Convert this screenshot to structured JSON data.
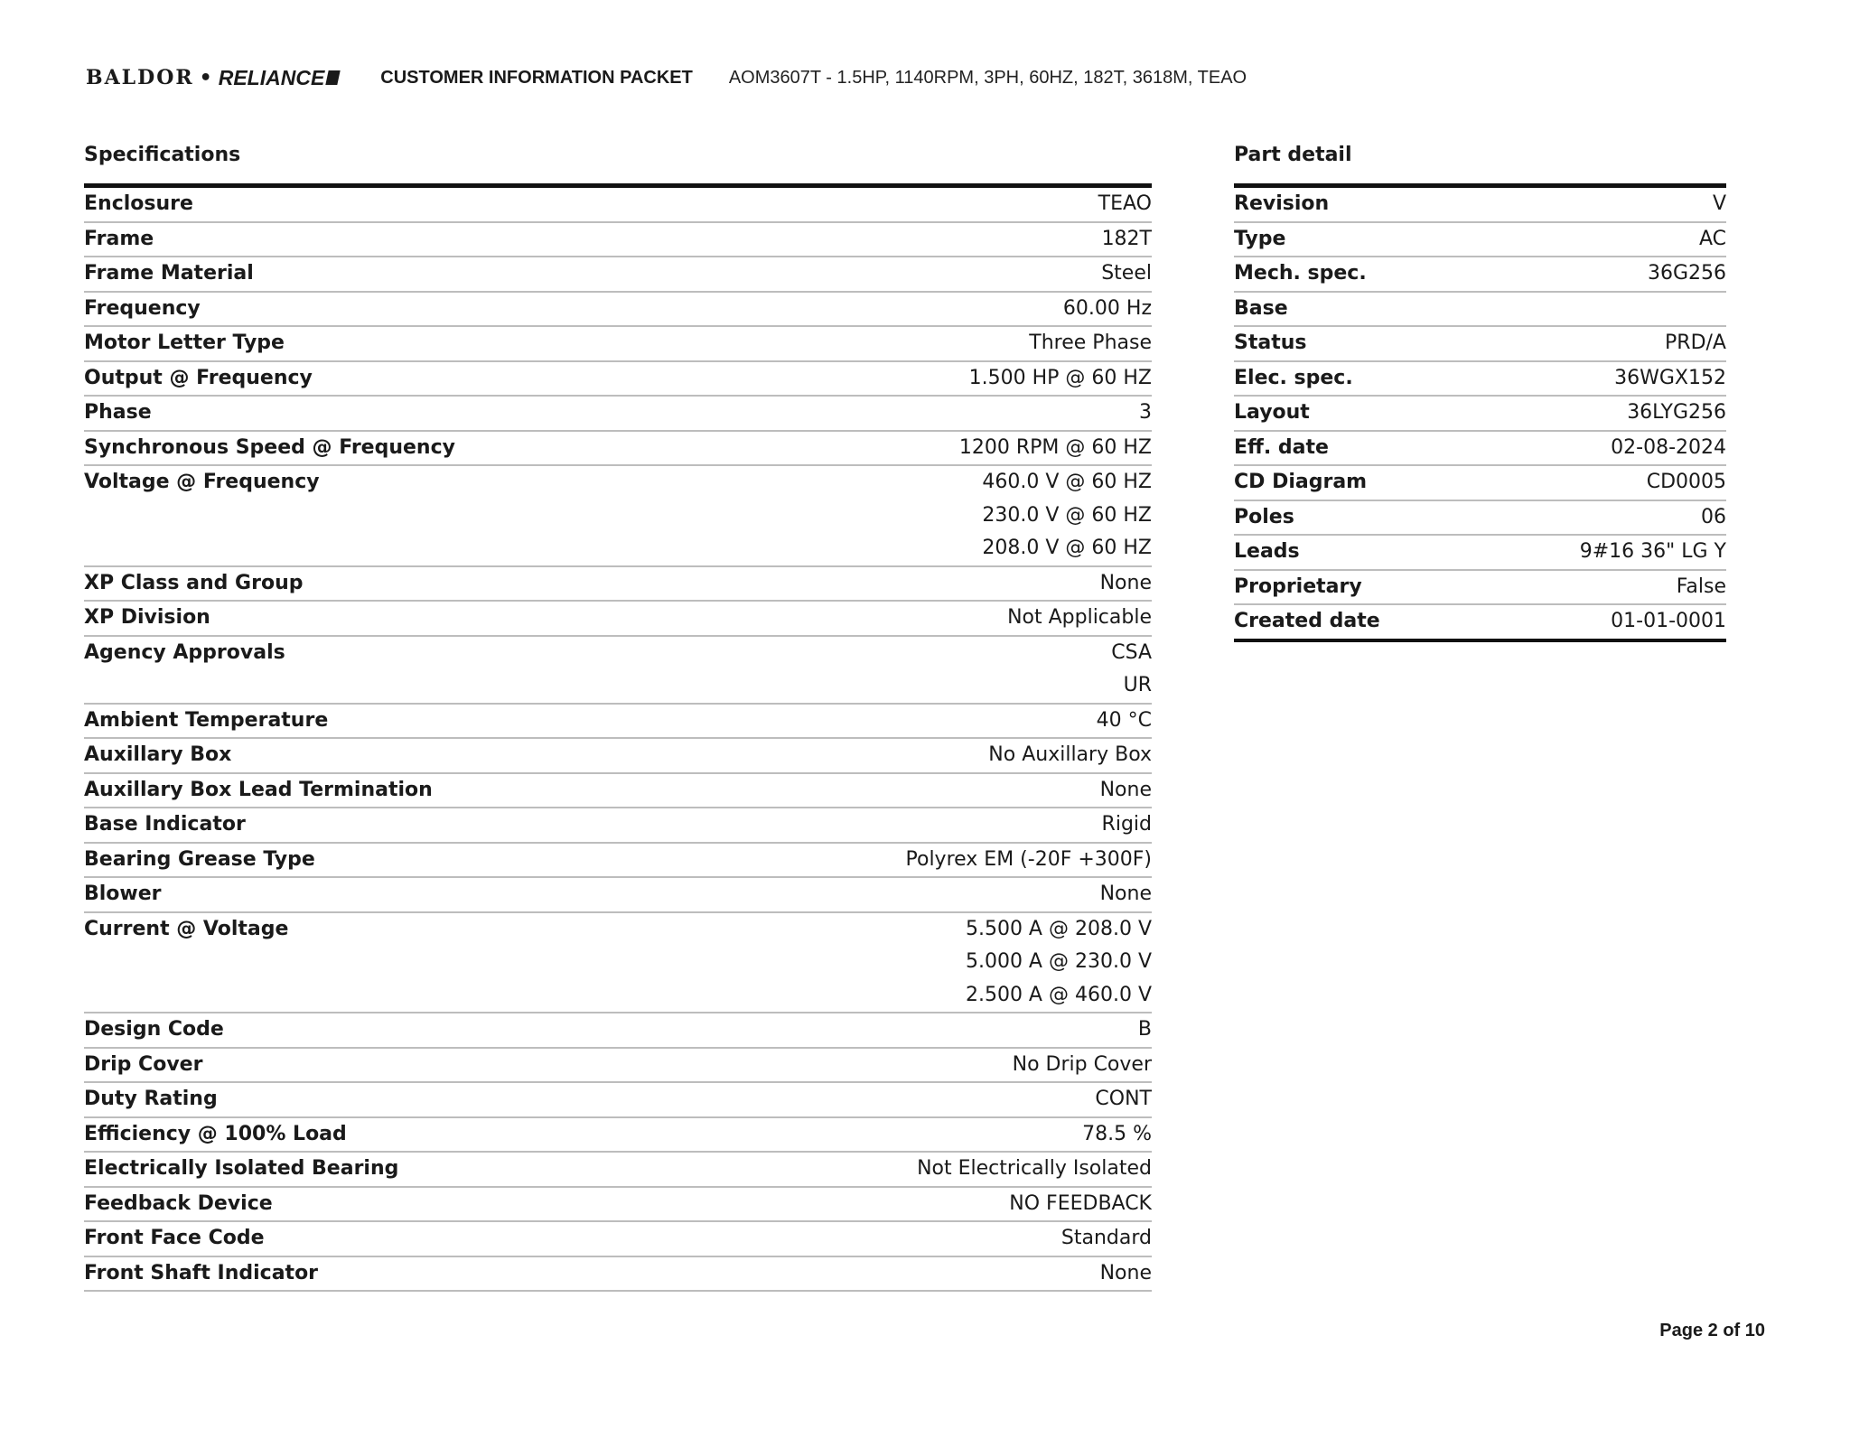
{
  "header": {
    "logo_text": "BALDOR • RELIANCE",
    "logo_left": "BALDOR",
    "logo_right": "RELIANCE",
    "title": "CUSTOMER INFORMATION PACKET",
    "model": "AOM3607T - 1.5HP, 1140RPM, 3PH, 60HZ, 182T, 3618M, TEAO"
  },
  "specifications": {
    "title": "Specifications",
    "rows": [
      {
        "label": "Enclosure",
        "values": [
          "TEAO"
        ]
      },
      {
        "label": "Frame",
        "values": [
          "182T"
        ]
      },
      {
        "label": "Frame Material",
        "values": [
          "Steel"
        ]
      },
      {
        "label": "Frequency",
        "values": [
          "60.00 Hz"
        ]
      },
      {
        "label": "Motor Letter Type",
        "values": [
          "Three Phase"
        ]
      },
      {
        "label": "Output @ Frequency",
        "values": [
          "1.500 HP @ 60 HZ"
        ]
      },
      {
        "label": "Phase",
        "values": [
          "3"
        ]
      },
      {
        "label": "Synchronous Speed @ Frequency",
        "values": [
          "1200 RPM @ 60 HZ"
        ]
      },
      {
        "label": "Voltage @ Frequency",
        "values": [
          "460.0 V @ 60 HZ",
          "230.0 V @ 60 HZ",
          "208.0 V @ 60 HZ"
        ]
      },
      {
        "label": "XP Class and Group",
        "values": [
          "None"
        ]
      },
      {
        "label": "XP Division",
        "values": [
          "Not Applicable"
        ]
      },
      {
        "label": "Agency Approvals",
        "values": [
          "CSA",
          "UR"
        ]
      },
      {
        "label": "Ambient Temperature",
        "values": [
          "40 °C"
        ]
      },
      {
        "label": "Auxillary Box",
        "values": [
          "No Auxillary Box"
        ]
      },
      {
        "label": "Auxillary Box Lead Termination",
        "values": [
          "None"
        ]
      },
      {
        "label": "Base Indicator",
        "values": [
          "Rigid"
        ]
      },
      {
        "label": "Bearing Grease Type",
        "values": [
          "Polyrex EM (-20F +300F)"
        ]
      },
      {
        "label": "Blower",
        "values": [
          "None"
        ]
      },
      {
        "label": "Current @ Voltage",
        "values": [
          "5.500 A @ 208.0 V",
          "5.000 A @ 230.0 V",
          "2.500 A @ 460.0 V"
        ]
      },
      {
        "label": "Design Code",
        "values": [
          "B"
        ]
      },
      {
        "label": "Drip Cover",
        "values": [
          "No Drip Cover"
        ]
      },
      {
        "label": "Duty Rating",
        "values": [
          "CONT"
        ]
      },
      {
        "label": "Efficiency @ 100% Load",
        "values": [
          "78.5 %"
        ]
      },
      {
        "label": "Electrically Isolated Bearing",
        "values": [
          "Not Electrically Isolated"
        ]
      },
      {
        "label": "Feedback Device",
        "values": [
          "NO FEEDBACK"
        ]
      },
      {
        "label": "Front Face Code",
        "values": [
          "Standard"
        ]
      },
      {
        "label": "Front Shaft Indicator",
        "values": [
          "None"
        ]
      }
    ]
  },
  "part_detail": {
    "title": "Part detail",
    "rows": [
      {
        "label": "Revision",
        "values": [
          "V"
        ]
      },
      {
        "label": "Type",
        "values": [
          "AC"
        ]
      },
      {
        "label": "Mech. spec.",
        "values": [
          "36G256"
        ]
      },
      {
        "label": "Base",
        "values": [
          ""
        ]
      },
      {
        "label": "Status",
        "values": [
          "PRD/A"
        ]
      },
      {
        "label": "Elec. spec.",
        "values": [
          "36WGX152"
        ]
      },
      {
        "label": "Layout",
        "values": [
          "36LYG256"
        ]
      },
      {
        "label": "Eff. date",
        "values": [
          "02-08-2024"
        ]
      },
      {
        "label": "CD Diagram",
        "values": [
          "CD0005"
        ]
      },
      {
        "label": "Poles",
        "values": [
          "06"
        ]
      },
      {
        "label": "Leads",
        "values": [
          "9#16 36\" LG Y"
        ]
      },
      {
        "label": "Proprietary",
        "values": [
          "False"
        ]
      },
      {
        "label": "Created date",
        "values": [
          "01-01-0001"
        ]
      }
    ]
  },
  "footer": {
    "page": "Page 2 of 10"
  }
}
